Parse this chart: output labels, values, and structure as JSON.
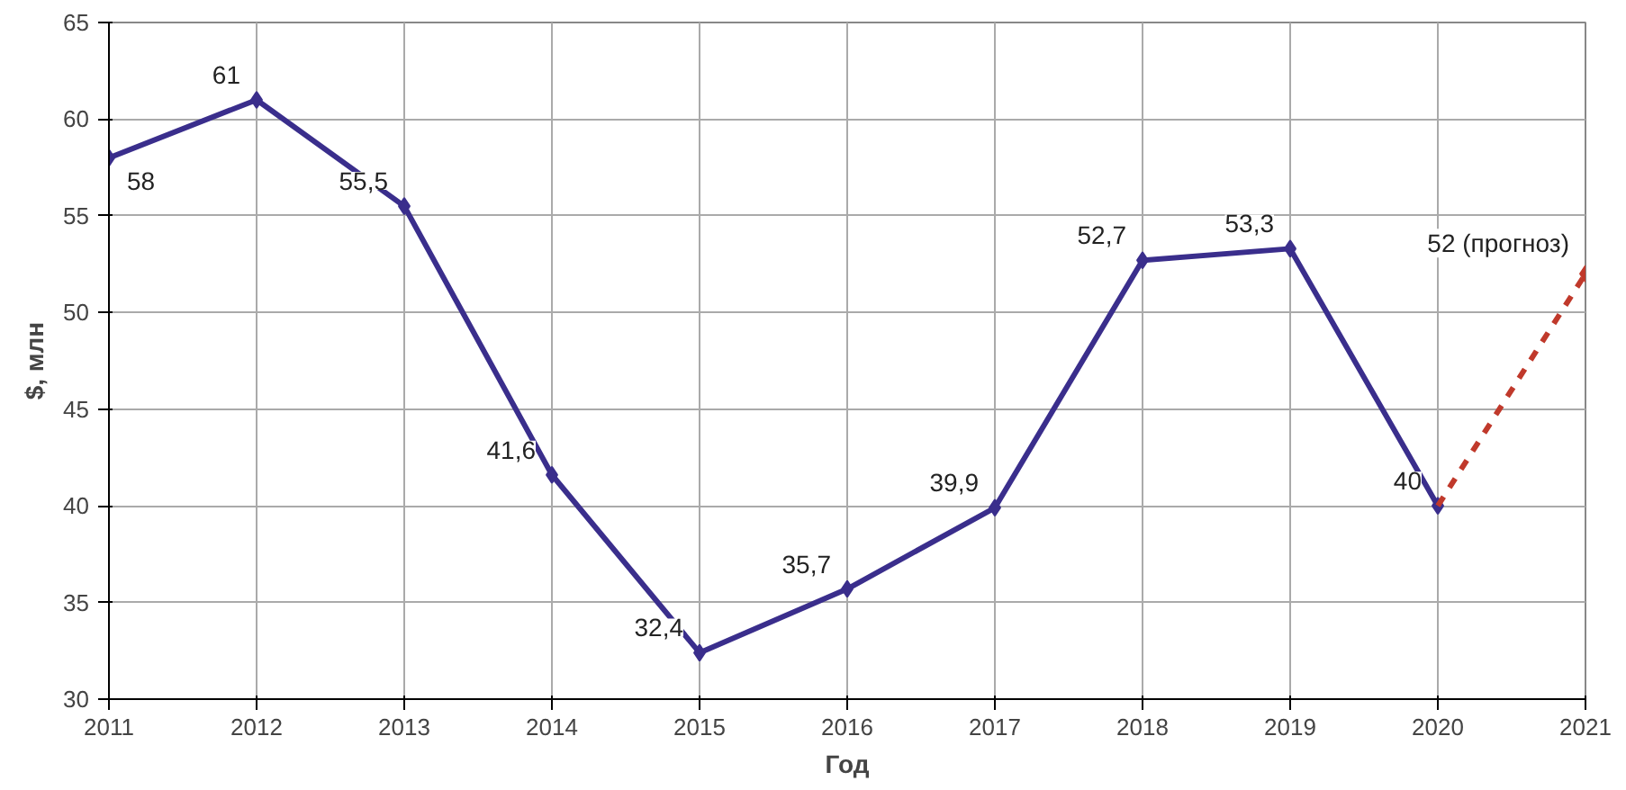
{
  "chart_data": {
    "type": "line",
    "xlabel": "Год",
    "ylabel": "$, млн",
    "x": [
      2011,
      2012,
      2013,
      2014,
      2015,
      2016,
      2017,
      2018,
      2019,
      2020,
      2021
    ],
    "series": [
      {
        "color": "#3a2e8c",
        "values": [
          58,
          61,
          55.5,
          41.6,
          32.4,
          35.7,
          39.9,
          52.7,
          53.3,
          40,
          null
        ],
        "value_labels": [
          "58",
          "61",
          "55,5",
          "41,6",
          "32,4",
          "35,7",
          "39,9",
          "52,7",
          "53,3",
          "40",
          null
        ],
        "marker": "diamond",
        "line_style": "solid"
      },
      {
        "color": "#c0392b",
        "values": [
          null,
          null,
          null,
          null,
          null,
          null,
          null,
          null,
          null,
          40,
          52
        ],
        "value_labels": [
          null,
          null,
          null,
          null,
          null,
          null,
          null,
          null,
          null,
          null,
          "52 (прогноз)"
        ],
        "marker": "diamond",
        "line_style": "dashed"
      }
    ],
    "xlim": [
      2011,
      2021
    ],
    "ylim": [
      30,
      65
    ],
    "xticks": [
      2011,
      2012,
      2013,
      2014,
      2015,
      2016,
      2017,
      2018,
      2019,
      2020,
      2021
    ],
    "yticks": [
      30,
      35,
      40,
      45,
      50,
      55,
      60,
      65
    ],
    "grid": true
  }
}
